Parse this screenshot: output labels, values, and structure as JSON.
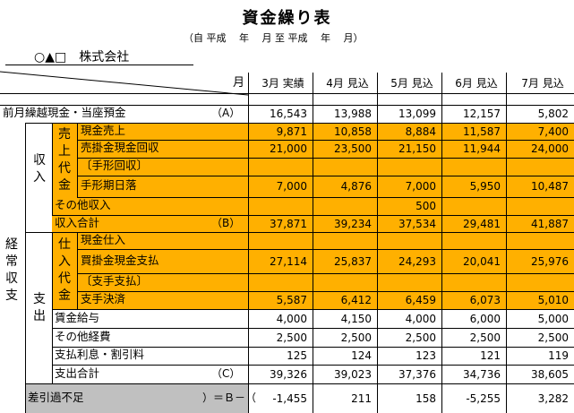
{
  "title": "資金繰り表",
  "period": "（自 平成　 年　 月 至 平成　 年　 月）",
  "company": "○▲□　株式会社",
  "header": {
    "month_label": "月",
    "months": [
      "3月 実績",
      "4月 見込",
      "5月 見込",
      "6月 見込",
      "7月 見込"
    ]
  },
  "side_labels": {
    "keijo": "経常収支",
    "shunyu": "収入",
    "shishutsu": "支出",
    "uriage_daikin": "売上代金",
    "shiire_daikin": "仕入代金"
  },
  "rows": {
    "zengetsu": {
      "label": "前月繰越現金・当座預金",
      "mark": "（A）",
      "values": [
        "16,543",
        "13,988",
        "13,099",
        "12,157",
        "5,802"
      ]
    },
    "genkin_uriage": {
      "label": "現金売上",
      "values": [
        "9,871",
        "10,858",
        "8,884",
        "11,587",
        "7,400"
      ]
    },
    "urikake": {
      "label": "売掛金現金回収",
      "values": [
        "21,000",
        "23,500",
        "21,150",
        "11,944",
        "24,000"
      ]
    },
    "tegata_kaishu": {
      "label": "〔手形回収〕",
      "values": [
        "",
        "",
        "",
        "",
        ""
      ]
    },
    "tegata_kijitsu": {
      "label": "手形期日落",
      "values": [
        "7,000",
        "4,876",
        "7,000",
        "5,950",
        "10,487"
      ]
    },
    "sonota_shunyu": {
      "label": "その他収入",
      "values": [
        "",
        "",
        "500",
        "",
        ""
      ]
    },
    "shunyu_gokei": {
      "label": "収入合計",
      "mark": "（B）",
      "values": [
        "37,871",
        "39,234",
        "37,534",
        "29,481",
        "41,887"
      ]
    },
    "genkin_shiire": {
      "label": "現金仕入",
      "values": [
        "",
        "",
        "",
        "",
        ""
      ]
    },
    "kaikake": {
      "label": "買掛金現金支払",
      "values": [
        "27,114",
        "25,837",
        "24,293",
        "20,041",
        "25,976"
      ]
    },
    "shite_shiharai": {
      "label": "〔支手支払〕",
      "values": [
        "",
        "",
        "",
        "",
        ""
      ]
    },
    "shite_kessai": {
      "label": "支手決済",
      "values": [
        "5,587",
        "6,412",
        "6,459",
        "6,073",
        "5,010"
      ]
    },
    "chingin": {
      "label": "賃金給与",
      "values": [
        "4,000",
        "4,150",
        "4,000",
        "6,000",
        "5,000"
      ]
    },
    "sonota_keihi": {
      "label": "その他経費",
      "values": [
        "2,500",
        "2,500",
        "2,500",
        "2,500",
        "2,500"
      ]
    },
    "shiharai_risoku": {
      "label": "支払利息・割引料",
      "values": [
        "125",
        "124",
        "123",
        "121",
        "119"
      ]
    },
    "shishutsu_gokei": {
      "label": "支出合計",
      "mark": "（C）",
      "values": [
        "39,326",
        "39,023",
        "37,376",
        "34,736",
        "38,605"
      ]
    },
    "sashihiki": {
      "label": "差引過不足",
      "mark": "）＝Ｂ－（",
      "values": [
        "-1,455",
        "211",
        "158",
        "-5,255",
        "3,282"
      ]
    }
  }
}
